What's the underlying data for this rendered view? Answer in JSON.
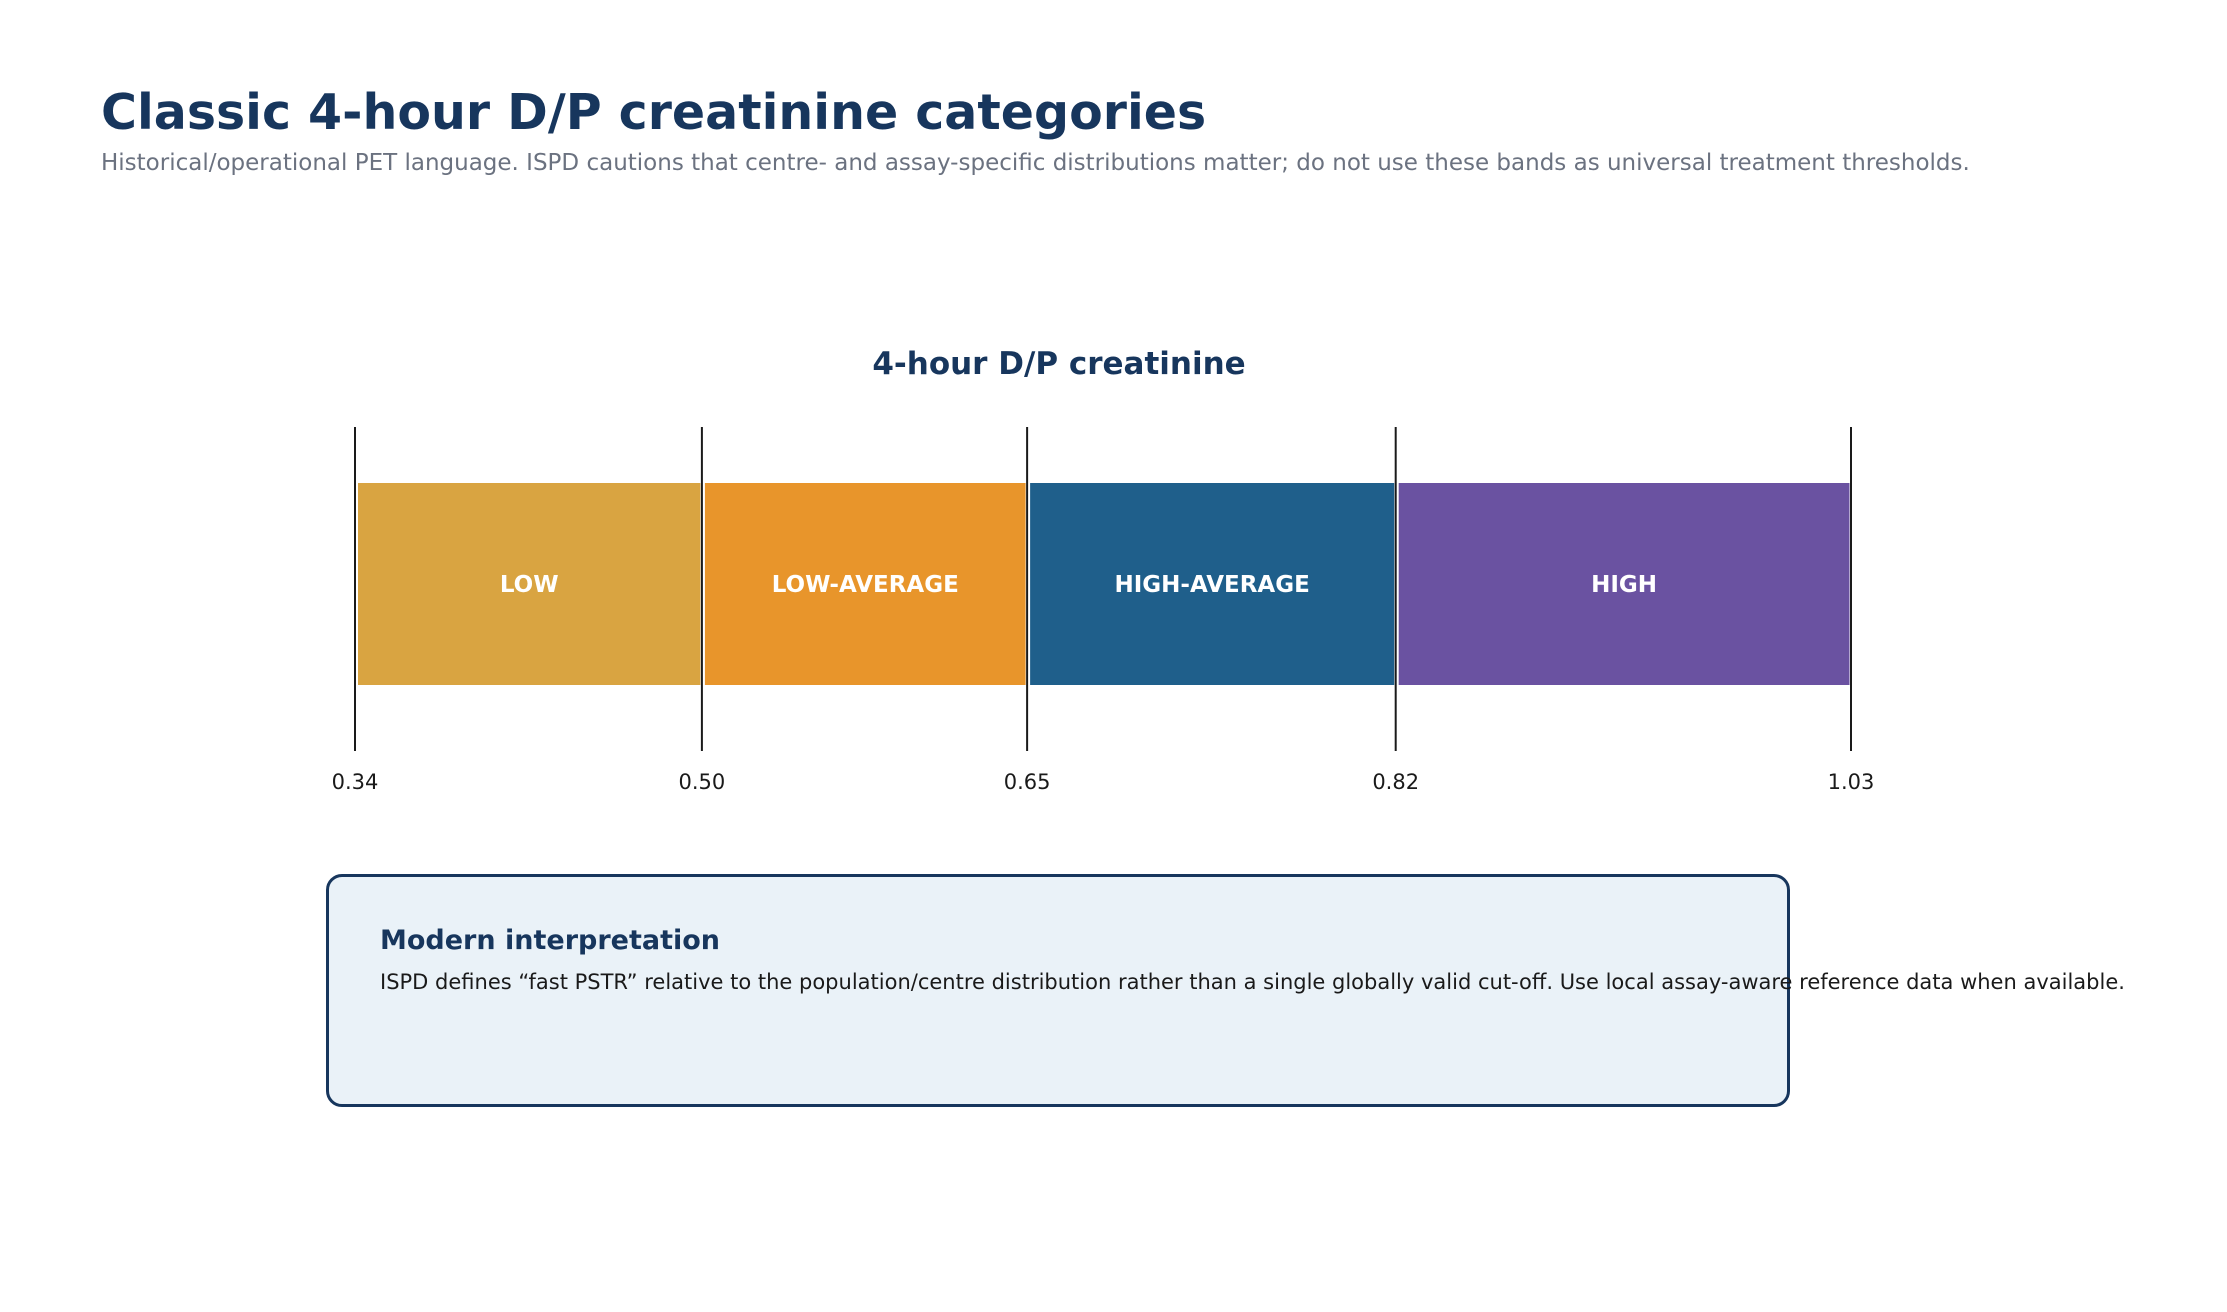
{
  "header": {
    "title": "Classic 4-hour D/P creatinine categories",
    "subtitle": "Historical/operational PET language. ISPD cautions that centre- and assay-specific distributions matter; do not use these bands as universal treatment thresholds."
  },
  "scale": {
    "title": "4-hour D/P creatinine",
    "boundaries": [
      0.34,
      0.5,
      0.65,
      0.82,
      1.03
    ],
    "tick_labels": [
      "0.34",
      "0.50",
      "0.65",
      "0.82",
      "1.03"
    ],
    "categories": [
      {
        "label": "LOW",
        "from": 0.34,
        "to": 0.5,
        "color": "#d9a441"
      },
      {
        "label": "LOW-AVERAGE",
        "from": 0.5,
        "to": 0.65,
        "color": "#e8952b"
      },
      {
        "label": "HIGH-AVERAGE",
        "from": 0.65,
        "to": 0.82,
        "color": "#1f5f8b"
      },
      {
        "label": "HIGH",
        "from": 0.82,
        "to": 1.03,
        "color": "#6a52a1"
      }
    ]
  },
  "note": {
    "title": "Modern interpretation",
    "body": "ISPD defines “fast PSTR” relative to the population/centre distribution rather than a single globally valid cut-off. Use local assay-aware reference data when available."
  }
}
